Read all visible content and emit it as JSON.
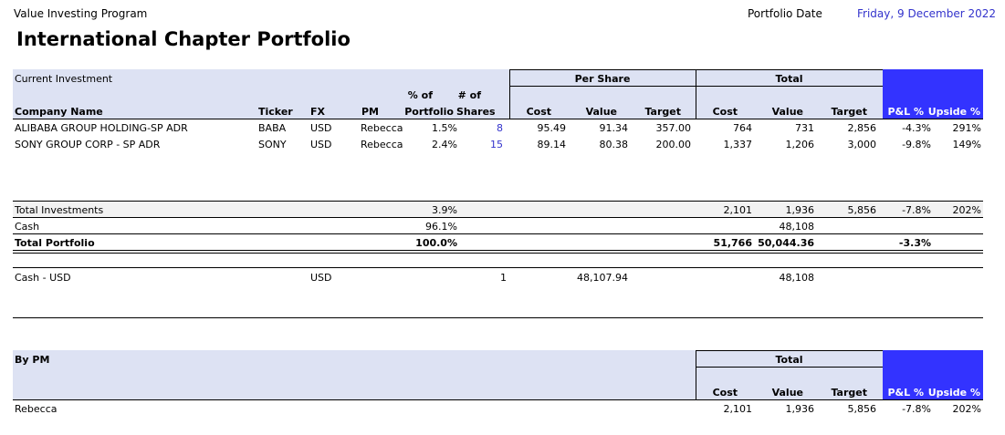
{
  "header": {
    "program": "Value Investing Program",
    "title": "International Chapter Portfolio",
    "date_label": "Portfolio Date",
    "date_value": "Friday, 9 December 2022"
  },
  "table1": {
    "section_label": "Current Investment",
    "group_per_share": "Per Share",
    "group_total": "Total",
    "columns": {
      "company": "Company Name",
      "ticker": "Ticker",
      "fx": "FX",
      "pm": "PM",
      "pct_l1": "% of",
      "pct_l2": "Portfolio",
      "shares_l1": "# of",
      "shares_l2": "Shares",
      "ps_cost": "Cost",
      "ps_value": "Value",
      "ps_target": "Target",
      "t_cost": "Cost",
      "t_value": "Value",
      "t_target": "Target",
      "pl": "P&L %",
      "upside": "Upside %"
    },
    "rows": [
      {
        "company": "ALIBABA GROUP HOLDING-SP ADR",
        "ticker": "BABA",
        "fx": "USD",
        "pm": "Rebecca",
        "pct": "1.5%",
        "shares": "8",
        "ps_cost": "95.49",
        "ps_value": "91.34",
        "ps_target": "357.00",
        "t_cost": "764",
        "t_value": "731",
        "t_target": "2,856",
        "pl": "-4.3%",
        "upside": "291%"
      },
      {
        "company": "SONY GROUP CORP - SP ADR",
        "ticker": "SONY",
        "fx": "USD",
        "pm": "Rebecca",
        "pct": "2.4%",
        "shares": "15",
        "ps_cost": "89.14",
        "ps_value": "80.38",
        "ps_target": "200.00",
        "t_cost": "1,337",
        "t_value": "1,206",
        "t_target": "3,000",
        "pl": "-9.8%",
        "upside": "149%"
      }
    ]
  },
  "totals": {
    "investments": {
      "label": "Total Investments",
      "pct": "3.9%",
      "t_cost": "2,101",
      "t_value": "1,936",
      "t_target": "5,856",
      "pl": "-7.8%",
      "upside": "202%"
    },
    "cash": {
      "label": "Cash",
      "pct": "96.1%",
      "t_value": "48,108"
    },
    "portfolio": {
      "label": "Total Portfolio",
      "pct": "100.0%",
      "t_cost": "51,766",
      "t_value": "50,044.36",
      "pl": "-3.3%"
    }
  },
  "cash_detail": {
    "label": "Cash - USD",
    "fx": "USD",
    "shares": "1",
    "ps_value": "48,107.94",
    "t_value": "48,108"
  },
  "table2": {
    "section_label": "By PM",
    "group_total": "Total",
    "columns": {
      "t_cost": "Cost",
      "t_value": "Value",
      "t_target": "Target",
      "pl": "P&L %",
      "upside": "Upside %"
    },
    "row": {
      "pm": "Rebecca",
      "t_cost": "2,101",
      "t_value": "1,936",
      "t_target": "5,856",
      "pl": "-7.8%",
      "upside": "202%"
    }
  },
  "colors": {
    "header_band": "#dde2f3",
    "accent_blue": "#3333ff",
    "date_blue": "#3333cc"
  }
}
